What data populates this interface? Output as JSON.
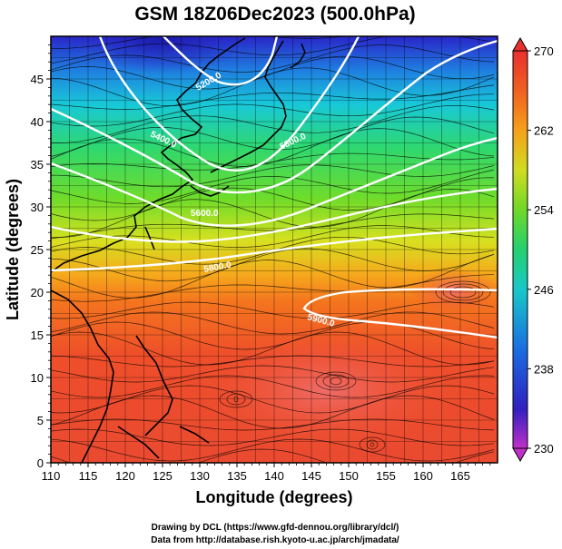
{
  "title": "GSM 18Z06Dec2023 (500.0hPa)",
  "xaxis": {
    "label": "Longitude (degrees)",
    "range": [
      110,
      170
    ],
    "ticks": [
      "110",
      "115",
      "120",
      "125",
      "130",
      "135",
      "140",
      "145",
      "150",
      "155",
      "160",
      "165"
    ]
  },
  "yaxis": {
    "label": "Latitude (degrees)",
    "range": [
      0,
      50
    ],
    "ticks": [
      "0",
      "5",
      "10",
      "15",
      "20",
      "25",
      "30",
      "35",
      "40",
      "45"
    ]
  },
  "colorbar": {
    "range": [
      230,
      270
    ],
    "ticks": [
      "230",
      "238",
      "246",
      "254",
      "262",
      "270"
    ]
  },
  "contours": [
    {
      "label": "5200.0"
    },
    {
      "label": "5400.0"
    },
    {
      "label": "5600.0"
    },
    {
      "label": "5800.0"
    },
    {
      "label": "5800.0"
    },
    {
      "label": "5900.0"
    }
  ],
  "credits": [
    "Drawing by DCL (https://www.gfd-dennou.org/library/dcl/)",
    "Data from http://database.rish.kyoto-u.ac.jp/arch/jmadata/"
  ]
}
